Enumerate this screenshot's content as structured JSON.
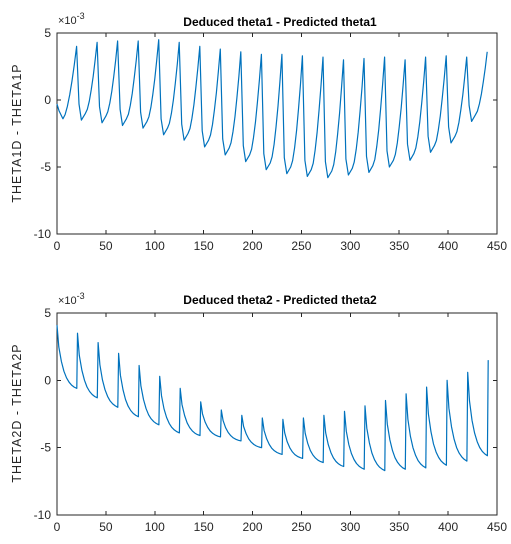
{
  "chart_data": [
    {
      "type": "line",
      "title": "Deduced theta1 - Predicted theta1",
      "xlabel": "",
      "ylabel": "THETA1D - THETA1P",
      "exponent_label": "×10",
      "exponent_power": "-3",
      "xlim": [
        0,
        450
      ],
      "ylim": [
        -10,
        5
      ],
      "xticks": [
        "0",
        "50",
        "100",
        "150",
        "200",
        "250",
        "300",
        "350",
        "400",
        "450"
      ],
      "yticks": [
        "5",
        "0",
        "-5",
        "-10"
      ],
      "line_color": "#0072BD",
      "grid": false,
      "profile": "sawtooth-rising",
      "peaks_x": [
        20,
        41,
        62,
        83,
        104,
        125,
        146,
        167,
        188,
        209,
        230,
        251,
        272,
        293,
        314,
        335,
        356,
        377,
        398,
        419,
        440
      ],
      "peaks_y": [
        4.0,
        4.3,
        4.4,
        4.4,
        4.5,
        4.3,
        4.0,
        3.8,
        3.6,
        3.4,
        3.4,
        3.3,
        3.2,
        3.0,
        3.1,
        3.2,
        3.0,
        3.2,
        3.3,
        3.2,
        3.6
      ],
      "troughs_y": [
        -1.4,
        -1.5,
        -1.7,
        -1.9,
        -2.1,
        -2.6,
        -3.0,
        -3.5,
        -4.1,
        -4.6,
        -5.2,
        -5.5,
        -5.7,
        -5.8,
        -5.6,
        -5.4,
        -5.0,
        -4.5,
        -3.9,
        -3.2,
        -1.6
      ],
      "start_y": -0.3
    },
    {
      "type": "line",
      "title": "Deduced theta2 - Predicted theta2",
      "xlabel": "",
      "ylabel": "THETA2D - THETA2P",
      "exponent_label": "×10",
      "exponent_power": "-3",
      "xlim": [
        0,
        450
      ],
      "ylim": [
        -10,
        5
      ],
      "xticks": [
        "0",
        "50",
        "100",
        "150",
        "200",
        "250",
        "300",
        "350",
        "400",
        "450"
      ],
      "yticks": [
        "5",
        "0",
        "-5",
        "-10"
      ],
      "line_color": "#0072BD",
      "grid": false,
      "profile": "decay-sawtooth",
      "peaks_x": [
        21,
        42,
        63,
        84,
        105,
        126,
        147,
        168,
        189,
        210,
        231,
        252,
        273,
        294,
        315,
        336,
        357,
        378,
        399,
        420,
        441
      ],
      "peaks_y": [
        3.5,
        2.8,
        2.0,
        1.1,
        0.3,
        -0.6,
        -1.6,
        -2.2,
        -2.6,
        -2.8,
        -2.9,
        -2.8,
        -2.6,
        -2.3,
        -1.9,
        -1.5,
        -1.0,
        -0.5,
        0.0,
        0.6,
        1.5
      ],
      "troughs_y": [
        -0.6,
        -1.3,
        -2.0,
        -2.7,
        -3.3,
        -3.9,
        -4.1,
        -4.2,
        -4.5,
        -5.0,
        -5.5,
        -5.8,
        -6.1,
        -6.4,
        -6.6,
        -6.7,
        -6.6,
        -6.5,
        -6.3,
        -6.0,
        -5.6
      ],
      "start_y": 4.1
    }
  ]
}
